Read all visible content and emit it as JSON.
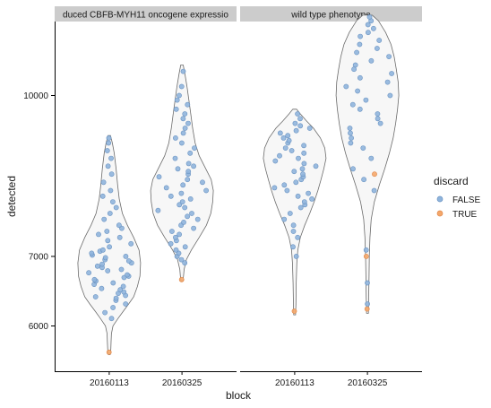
{
  "chart_data": {
    "type": "violin",
    "xlabel": "block",
    "ylabel": "detected",
    "y_scale": "log10",
    "ylim": [
      5400,
      13700
    ],
    "y_ticks": [
      6000,
      7000,
      10000
    ],
    "y_tick_labels": [
      "6000",
      "7000",
      "10000"
    ],
    "grid": false,
    "legend": {
      "title": "discard",
      "position": "right",
      "entries": [
        {
          "label": "FALSE",
          "color": "#8fb4dc"
        },
        {
          "label": "TRUE",
          "color": "#f4a76a"
        }
      ]
    },
    "colors": {
      "FALSE": "#8fb4dc",
      "TRUE": "#f4a76a",
      "violin_fill": "#f7f7f7",
      "violin_stroke": "#6b6b6b",
      "strip_bg": "#cccccc"
    },
    "panels": [
      {
        "label": "duced CBFB-MYH11 oncogene expressio",
        "categories": [
          "20160113",
          "20160325"
        ],
        "groups": [
          {
            "category": "20160113",
            "violin": [
              [
                5630,
                0.03
              ],
              [
                5700,
                0.05
              ],
              [
                5800,
                0.06
              ],
              [
                5900,
                0.07
              ],
              [
                6000,
                0.12
              ],
              [
                6100,
                0.28
              ],
              [
                6200,
                0.45
              ],
              [
                6300,
                0.62
              ],
              [
                6400,
                0.78
              ],
              [
                6550,
                0.9
              ],
              [
                6700,
                0.98
              ],
              [
                6900,
                1.0
              ],
              [
                7100,
                0.95
              ],
              [
                7300,
                0.78
              ],
              [
                7500,
                0.58
              ],
              [
                7700,
                0.42
              ],
              [
                7950,
                0.32
              ],
              [
                8200,
                0.27
              ],
              [
                8500,
                0.22
              ],
              [
                8800,
                0.16
              ],
              [
                9000,
                0.1
              ],
              [
                9150,
                0.04
              ]
            ],
            "false_values": [
              6100,
              6180,
              6250,
              6300,
              6350,
              6380,
              6400,
              6420,
              6450,
              6470,
              6500,
              6520,
              6550,
              6580,
              6600,
              6630,
              6650,
              6680,
              6700,
              6720,
              6750,
              6780,
              6800,
              6830,
              6850,
              6880,
              6900,
              6930,
              6950,
              6980,
              7000,
              7020,
              7050,
              7080,
              7100,
              7150,
              7200,
              7250,
              7300,
              7350,
              7400,
              7450,
              7500,
              7600,
              7700,
              7800,
              7900,
              8000,
              8100,
              8250,
              8400,
              8550,
              8700,
              8850,
              9000,
              9100
            ],
            "true_values": [
              5660
            ]
          },
          {
            "category": "20160325",
            "violin": [
              [
                6630,
                0.03
              ],
              [
                6700,
                0.05
              ],
              [
                6800,
                0.07
              ],
              [
                6950,
                0.14
              ],
              [
                7100,
                0.3
              ],
              [
                7300,
                0.55
              ],
              [
                7500,
                0.78
              ],
              [
                7700,
                0.92
              ],
              [
                7900,
                0.98
              ],
              [
                8100,
                1.0
              ],
              [
                8300,
                0.93
              ],
              [
                8500,
                0.76
              ],
              [
                8750,
                0.55
              ],
              [
                9000,
                0.42
              ],
              [
                9300,
                0.34
              ],
              [
                9600,
                0.28
              ],
              [
                9900,
                0.22
              ],
              [
                10200,
                0.16
              ],
              [
                10500,
                0.09
              ],
              [
                10700,
                0.04
              ]
            ],
            "false_values": [
              6900,
              6950,
              7000,
              7050,
              7100,
              7150,
              7200,
              7250,
              7300,
              7350,
              7400,
              7450,
              7500,
              7550,
              7600,
              7650,
              7700,
              7750,
              7800,
              7850,
              7900,
              7950,
              8000,
              8050,
              8100,
              8150,
              8200,
              8250,
              8300,
              8350,
              8400,
              8450,
              8500,
              8550,
              8600,
              8700,
              8800,
              8900,
              9000,
              9100,
              9200,
              9300,
              9400,
              9500,
              9600,
              9700,
              9800,
              9900,
              10000,
              10200,
              10550
            ],
            "true_values": [
              6650
            ]
          }
        ]
      },
      {
        "label": "wild type phenotype",
        "categories": [
          "20160113",
          "20160325"
        ],
        "groups": [
          {
            "category": "20160113",
            "violin": [
              [
                6150,
                0.03
              ],
              [
                6300,
                0.04
              ],
              [
                6600,
                0.05
              ],
              [
                6900,
                0.07
              ],
              [
                7100,
                0.1
              ],
              [
                7300,
                0.18
              ],
              [
                7500,
                0.32
              ],
              [
                7700,
                0.48
              ],
              [
                7900,
                0.62
              ],
              [
                8100,
                0.74
              ],
              [
                8300,
                0.84
              ],
              [
                8500,
                0.93
              ],
              [
                8700,
                1.0
              ],
              [
                8900,
                0.96
              ],
              [
                9100,
                0.82
              ],
              [
                9300,
                0.6
              ],
              [
                9450,
                0.38
              ],
              [
                9600,
                0.18
              ],
              [
                9700,
                0.06
              ]
            ],
            "false_values": [
              7000,
              7150,
              7300,
              7400,
              7500,
              7600,
              7700,
              7800,
              7850,
              7900,
              7950,
              8000,
              8050,
              8100,
              8150,
              8200,
              8250,
              8300,
              8350,
              8400,
              8450,
              8500,
              8550,
              8600,
              8650,
              8700,
              8750,
              8800,
              8850,
              8900,
              8950,
              9000,
              9050,
              9100,
              9150,
              9200,
              9250,
              9300,
              9350,
              9400,
              9500,
              9600
            ],
            "true_values": [
              6200
            ]
          },
          {
            "category": "20160325",
            "violin": [
              [
                6170,
                0.03
              ],
              [
                6400,
                0.04
              ],
              [
                6700,
                0.05
              ],
              [
                7000,
                0.06
              ],
              [
                7300,
                0.08
              ],
              [
                7600,
                0.12
              ],
              [
                7900,
                0.22
              ],
              [
                8200,
                0.38
              ],
              [
                8500,
                0.55
              ],
              [
                8800,
                0.7
              ],
              [
                9100,
                0.82
              ],
              [
                9400,
                0.9
              ],
              [
                9700,
                0.96
              ],
              [
                10000,
                1.0
              ],
              [
                10300,
                0.98
              ],
              [
                10600,
                0.92
              ],
              [
                10900,
                0.85
              ],
              [
                11200,
                0.75
              ],
              [
                11500,
                0.58
              ],
              [
                11800,
                0.35
              ],
              [
                11950,
                0.15
              ]
            ],
            "false_values": [
              6300,
              6600,
              7100,
              8100,
              8300,
              8500,
              8700,
              8900,
              9000,
              9100,
              9200,
              9300,
              9400,
              9500,
              9600,
              9700,
              9800,
              9900,
              10000,
              10100,
              10200,
              10300,
              10400,
              10500,
              10600,
              10700,
              10800,
              10900,
              11000,
              11100,
              11200,
              11300,
              11400,
              11500,
              11600,
              11700,
              11800,
              11900
            ],
            "true_values": [
              6230,
              7000,
              8400
            ]
          }
        ]
      }
    ]
  }
}
